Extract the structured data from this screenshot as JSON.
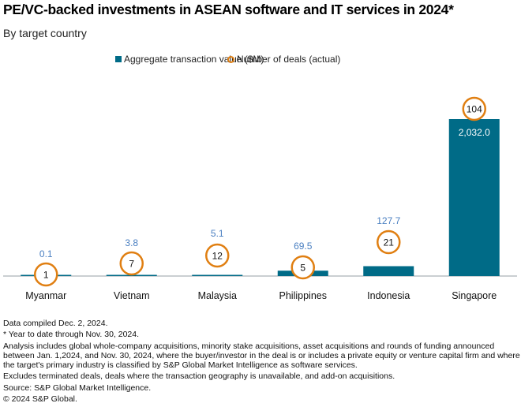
{
  "chart_data": {
    "type": "bar",
    "title": "PE/VC-backed investments in ASEAN software and IT services in 2024*",
    "subtitle": "By target country",
    "xlabel": "",
    "ylabel": "",
    "categories": [
      "Myanmar",
      "Vietnam",
      "Malaysia",
      "Philippines",
      "Indonesia",
      "Singapore"
    ],
    "series": [
      {
        "name": "Aggregate transaction value ($M)",
        "kind": "bar",
        "color": "#006b87",
        "values": [
          0.1,
          3.8,
          5.1,
          69.5,
          127.7,
          2032.0
        ],
        "labels": [
          "0.1",
          "3.8",
          "5.1",
          "69.5",
          "127.7",
          "2,032.0"
        ]
      },
      {
        "name": "Number of deals (actual)",
        "kind": "marker-circle",
        "color": "#e07f12",
        "values": [
          1,
          7,
          12,
          5,
          21,
          104
        ],
        "labels": [
          "1",
          "7",
          "12",
          "5",
          "21",
          "104"
        ]
      }
    ],
    "ylim": [
      0,
      2032
    ],
    "grid": false,
    "legend_position": "top-center",
    "label_color": "#4a7fc1",
    "label_color_inside": "#ffffff"
  },
  "legend": {
    "bar_label": "Aggregate transaction value ($M)",
    "circle_label": "Number of deals (actual)"
  },
  "notes": [
    "Data compiled Dec. 2, 2024.",
    "* Year to date through Nov. 30, 2024.",
    "Analysis includes global whole-company acquisitions, minority stake acquisitions, asset acquisitions and rounds of funding announced between Jan. 1,2024, and Nov. 30, 2024, where the buyer/investor in the deal is or includes a private equity or venture capital firm and where the target's primary industry is classified by S&P Global Market Intelligence as software services.",
    "Excludes terminated deals,  deals where the transaction geography is unavailable, and add-on acquisitions.",
    "Source: S&P Global Market Intelligence.",
    "© 2024 S&P Global."
  ]
}
